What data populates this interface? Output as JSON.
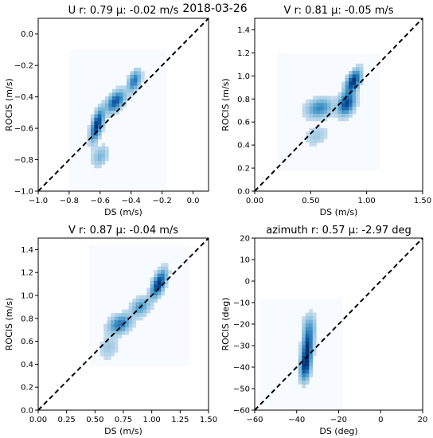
{
  "figure": {
    "suptitle": "2018-03-26",
    "colors": {
      "density_dark": "#08306b",
      "density_light": "#f7fbff",
      "diagonal": "#000000",
      "frame": "#000000"
    }
  },
  "chart_data": [
    {
      "type": "heatmap",
      "title": "U r: 0.79 μ: -0.02 m/s",
      "xlabel": "DS (m/s)",
      "ylabel": "ROCIS (m/s)",
      "xlim": [
        -1.0,
        0.1
      ],
      "ylim": [
        -1.0,
        0.1
      ],
      "xticks": [
        -1.0,
        -0.8,
        -0.6,
        -0.4,
        -0.2,
        0.0
      ],
      "xtick_labels": [
        "−1.0",
        "−0.8",
        "−0.6",
        "−0.4",
        "−0.2",
        "0.0"
      ],
      "yticks": [
        -1.0,
        -0.8,
        -0.6,
        -0.4,
        -0.2,
        0.0
      ],
      "ytick_labels": [
        "−1.0",
        "−0.8",
        "−0.6",
        "−0.4",
        "−0.2",
        "0.0"
      ],
      "grid": false,
      "reference_line": "1:1 dashed",
      "data_extent": {
        "x": [
          -0.8,
          -0.17
        ],
        "y": [
          -0.99,
          -0.1
        ]
      },
      "clusters": [
        {
          "x": -0.62,
          "y": -0.58,
          "sx": 0.025,
          "sy": 0.06,
          "rho": 0.6,
          "weight": 1.0
        },
        {
          "x": -0.5,
          "y": -0.43,
          "sx": 0.035,
          "sy": 0.04,
          "rho": 0.5,
          "weight": 0.8
        },
        {
          "x": -0.38,
          "y": -0.3,
          "sx": 0.025,
          "sy": 0.04,
          "rho": 0.4,
          "weight": 0.6
        },
        {
          "x": -0.6,
          "y": -0.78,
          "sx": 0.03,
          "sy": 0.04,
          "rho": 0.3,
          "weight": 0.25
        }
      ]
    },
    {
      "type": "heatmap",
      "title": "V r: 0.81 μ: -0.05 m/s",
      "xlabel": "DS (m/s)",
      "ylabel": "ROCIS (m/s)",
      "xlim": [
        0.0,
        1.5
      ],
      "ylim": [
        0.0,
        1.5
      ],
      "xticks": [
        0.0,
        0.5,
        1.0,
        1.5
      ],
      "xtick_labels": [
        "0.00",
        "0.50",
        "1.00",
        "1.50"
      ],
      "yticks": [
        0.0,
        0.2,
        0.4,
        0.6,
        0.8,
        1.0,
        1.2,
        1.4
      ],
      "ytick_labels": [
        "0.0",
        "0.2",
        "0.4",
        "0.6",
        "0.8",
        "1.0",
        "1.2",
        "1.4"
      ],
      "grid": false,
      "reference_line": "1:1 dashed",
      "data_extent": {
        "x": [
          0.2,
          1.12
        ],
        "y": [
          0.18,
          1.2
        ]
      },
      "clusters": [
        {
          "x": 0.88,
          "y": 0.95,
          "sx": 0.04,
          "sy": 0.06,
          "rho": 0.5,
          "weight": 1.0
        },
        {
          "x": 0.82,
          "y": 0.76,
          "sx": 0.045,
          "sy": 0.06,
          "rho": 0.3,
          "weight": 0.9
        },
        {
          "x": 0.58,
          "y": 0.72,
          "sx": 0.07,
          "sy": 0.05,
          "rho": 0.2,
          "weight": 0.5
        },
        {
          "x": 0.55,
          "y": 0.48,
          "sx": 0.06,
          "sy": 0.05,
          "rho": 0.3,
          "weight": 0.15
        }
      ]
    },
    {
      "type": "heatmap",
      "title": "V r: 0.87 μ: -0.04 m/s",
      "xlabel": "DS (m/s)",
      "ylabel": "ROCIS (m/s)",
      "xlim": [
        0.0,
        1.5
      ],
      "ylim": [
        0.0,
        1.5
      ],
      "xticks": [
        0.0,
        0.25,
        0.5,
        0.75,
        1.0,
        1.25,
        1.5
      ],
      "xtick_labels": [
        "0.00",
        "0.25",
        "0.50",
        "0.75",
        "1.00",
        "1.25",
        "1.50"
      ],
      "yticks": [
        0.0,
        0.2,
        0.4,
        0.6,
        0.8,
        1.0,
        1.2,
        1.4
      ],
      "ytick_labels": [
        "0.0",
        "0.2",
        "0.4",
        "0.6",
        "0.8",
        "1.0",
        "1.2",
        "1.4"
      ],
      "grid": false,
      "reference_line": "1:1 dashed",
      "data_extent": {
        "x": [
          0.45,
          1.33
        ],
        "y": [
          0.38,
          1.44
        ]
      },
      "clusters": [
        {
          "x": 1.06,
          "y": 1.1,
          "sx": 0.04,
          "sy": 0.07,
          "rho": 0.6,
          "weight": 1.0
        },
        {
          "x": 0.72,
          "y": 0.75,
          "sx": 0.06,
          "sy": 0.05,
          "rho": 0.3,
          "weight": 0.6
        },
        {
          "x": 0.9,
          "y": 0.9,
          "sx": 0.05,
          "sy": 0.05,
          "rho": 0.3,
          "weight": 0.4
        },
        {
          "x": 0.62,
          "y": 0.55,
          "sx": 0.05,
          "sy": 0.06,
          "rho": 0.2,
          "weight": 0.15
        }
      ]
    },
    {
      "type": "heatmap",
      "title": "azimuth r: 0.57 μ: -2.97 deg",
      "xlabel": "DS (deg)",
      "ylabel": "ROCIS (deg)",
      "xlim": [
        -60,
        20
      ],
      "ylim": [
        -60,
        20
      ],
      "xticks": [
        -60,
        -40,
        -20,
        0,
        20
      ],
      "xtick_labels": [
        "−60",
        "−40",
        "−20",
        "0",
        "20"
      ],
      "yticks": [
        -60,
        -50,
        -40,
        -30,
        -20,
        -10,
        0,
        10,
        20
      ],
      "ytick_labels": [
        "−60",
        "−50",
        "−40",
        "−30",
        "−20",
        "−10",
        "0",
        "10",
        "20"
      ],
      "grid": false,
      "reference_line": "1:1 dashed",
      "data_extent": {
        "x": [
          -58,
          -18
        ],
        "y": [
          -59,
          -8
        ]
      },
      "clusters": [
        {
          "x": -35,
          "y": -32,
          "sx": 1.5,
          "sy": 5.5,
          "rho": 0.3,
          "weight": 1.0
        },
        {
          "x": -36,
          "y": -40,
          "sx": 1.5,
          "sy": 4,
          "rho": 0.2,
          "weight": 0.7
        },
        {
          "x": -34,
          "y": -22,
          "sx": 2,
          "sy": 4,
          "rho": 0.1,
          "weight": 0.3
        }
      ]
    }
  ]
}
